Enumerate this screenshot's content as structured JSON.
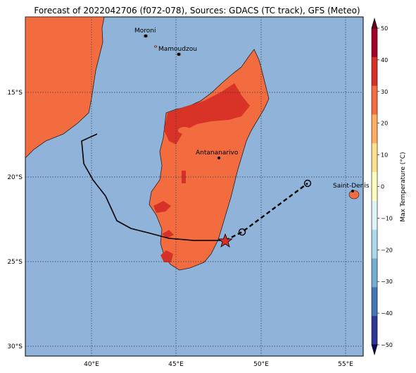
{
  "title": "Forecast of 2022042706 (f072-078), Sources: GDACS (TC track), GFS (Meteo)",
  "map": {
    "background_color": "#8fb3d9",
    "land_color": "#f26c3f",
    "hot_color": "#d73027",
    "lat_labels": [
      "15°S",
      "20°S",
      "25°S",
      "30°S"
    ],
    "lon_labels": [
      "40°E",
      "45°E",
      "50°E",
      "55°E"
    ],
    "cities": [
      {
        "name": "Moroni"
      },
      {
        "name": "Mamoudzou"
      },
      {
        "name": "Antananarivo"
      },
      {
        "name": "Saint-Denis"
      }
    ]
  },
  "track": {
    "past_color": "#000000",
    "forecast_style": "dashed",
    "current_marker": "red-star",
    "forecast_marker": "open-circle"
  },
  "colorbar": {
    "label": "Max Temperature (°C)",
    "ticks": [
      "50",
      "40",
      "30",
      "20",
      "10",
      "0",
      "−10",
      "−20",
      "−30",
      "−40",
      "−50"
    ],
    "colors": [
      "#a50026",
      "#d73027",
      "#f46d43",
      "#fdae61",
      "#fee090",
      "#ffffbf",
      "#e0f3f8",
      "#abd9e9",
      "#74add1",
      "#4575b4",
      "#313695"
    ]
  }
}
